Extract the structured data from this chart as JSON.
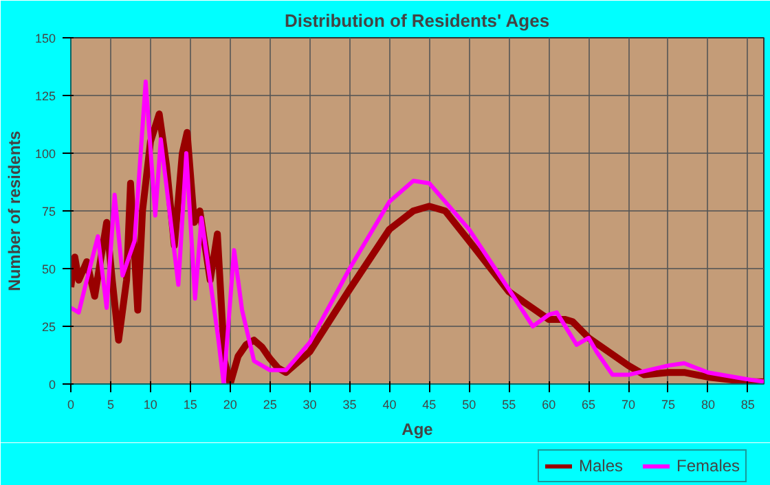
{
  "chart_data": {
    "type": "line",
    "title": "Distribution of Residents' Ages",
    "xlabel": "Age",
    "ylabel": "Number of residents",
    "xlim": [
      0,
      87
    ],
    "xticks": [
      0,
      5,
      10,
      15,
      20,
      25,
      30,
      35,
      40,
      45,
      50,
      55,
      60,
      65,
      70,
      75,
      80,
      85
    ],
    "ylim": [
      0,
      150
    ],
    "yticks": [
      0,
      25,
      50,
      75,
      100,
      125,
      150
    ],
    "grid": true,
    "legend": "bottom right",
    "line_style": "solid",
    "marker": "none",
    "series": [
      {
        "name": "Males",
        "color": "#990000",
        "x": [
          0,
          0.5,
          1,
          2,
          3,
          4.5,
          5.2,
          6,
          7,
          7.5,
          8.4,
          9,
          10,
          11.1,
          12,
          13,
          14,
          14.6,
          15.5,
          16.2,
          17.5,
          18.4,
          19.3,
          20,
          21,
          22,
          23,
          24,
          25,
          26,
          27,
          30,
          35,
          40,
          43,
          45,
          47,
          50,
          55,
          60,
          62,
          63,
          65,
          70,
          72,
          75,
          77,
          80,
          85,
          87
        ],
        "values": [
          42,
          55,
          45,
          53,
          38,
          70,
          45,
          19,
          45,
          87,
          32,
          75,
          105,
          117,
          95,
          60,
          100,
          109,
          70,
          75,
          45,
          65,
          10,
          0,
          12,
          17,
          19,
          16,
          11,
          7,
          5,
          14,
          41,
          67,
          75,
          77,
          75,
          62,
          40,
          28,
          28,
          27,
          20,
          8,
          4,
          5,
          5,
          3,
          1,
          1
        ]
      },
      {
        "name": "Females",
        "color": "#ff00ff",
        "x": [
          0,
          1,
          2,
          3.4,
          4.5,
          5.5,
          6.5,
          8,
          9.4,
          10.6,
          11.3,
          13.5,
          14.5,
          15.6,
          16.4,
          18.5,
          19.2,
          20.5,
          21.5,
          23,
          25,
          27,
          30,
          35,
          40,
          43,
          45,
          50,
          55,
          58,
          60,
          61,
          63.5,
          65,
          66,
          68,
          70,
          75,
          77,
          80,
          85,
          87
        ],
        "values": [
          33,
          31,
          45,
          64,
          33,
          82,
          47,
          62,
          131,
          73,
          106,
          43,
          100,
          37,
          72,
          20,
          0,
          58,
          32,
          10,
          6,
          6,
          18,
          50,
          79,
          88,
          87,
          67,
          41,
          25,
          30,
          31,
          17,
          20,
          14,
          4,
          4,
          8,
          9,
          5,
          2,
          1
        ]
      }
    ]
  }
}
